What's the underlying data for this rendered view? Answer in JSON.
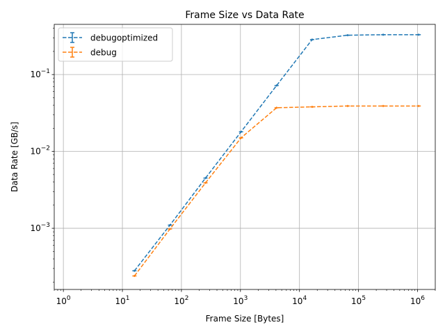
{
  "chart_data": {
    "type": "line",
    "title": "Frame Size vs Data Rate",
    "xlabel": "Frame Size [Bytes]",
    "ylabel": "Data Rate [GB/s]",
    "xscale": "log",
    "yscale": "log",
    "xlim": [
      0.7,
      2000000
    ],
    "ylim": [
      0.00016,
      0.45
    ],
    "x_ticks": [
      {
        "base": "10",
        "exp": "0",
        "value": 1
      },
      {
        "base": "10",
        "exp": "1",
        "value": 10
      },
      {
        "base": "10",
        "exp": "2",
        "value": 100
      },
      {
        "base": "10",
        "exp": "3",
        "value": 1000
      },
      {
        "base": "10",
        "exp": "4",
        "value": 10000
      },
      {
        "base": "10",
        "exp": "5",
        "value": 100000
      },
      {
        "base": "10",
        "exp": "6",
        "value": 1000000
      }
    ],
    "y_ticks": [
      {
        "base": "10",
        "exp": "−3",
        "value": 0.001
      },
      {
        "base": "10",
        "exp": "−2",
        "value": 0.01
      },
      {
        "base": "10",
        "exp": "−1",
        "value": 0.1
      }
    ],
    "grid": true,
    "legend_position": "top-left",
    "series": [
      {
        "name": "debugoptimized",
        "color": "#1f77b4",
        "linestyle": "dashed",
        "errorbars": true,
        "x": [
          16,
          64,
          256,
          1024,
          4096,
          16384,
          65536,
          262144,
          1048576
        ],
        "y": [
          0.00028,
          0.0011,
          0.0045,
          0.018,
          0.072,
          0.285,
          0.325,
          0.33,
          0.33
        ]
      },
      {
        "name": "debug",
        "color": "#ff7f0e",
        "linestyle": "dashed",
        "errorbars": true,
        "x": [
          16,
          64,
          256,
          1024,
          4096,
          16384,
          65536,
          262144,
          1048576
        ],
        "y": [
          0.00024,
          0.00098,
          0.0039,
          0.015,
          0.037,
          0.038,
          0.039,
          0.039,
          0.039
        ]
      }
    ]
  }
}
